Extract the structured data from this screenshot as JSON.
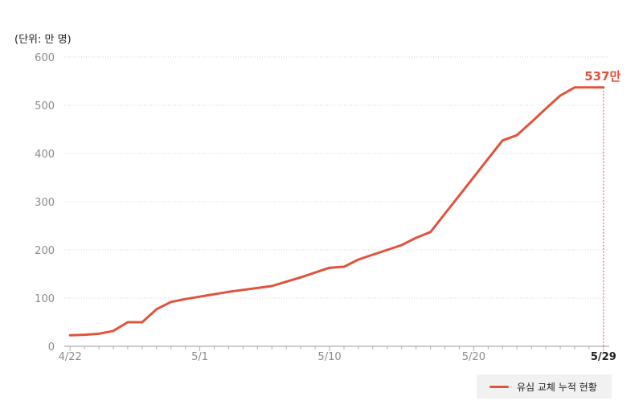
{
  "unit_label": "(단위: 만 명)",
  "chart_data": {
    "type": "line",
    "title": "",
    "xlabel": "",
    "ylabel": "(단위: 만 명)",
    "ylim": [
      0,
      600
    ],
    "y_ticks": [
      0,
      100,
      200,
      300,
      400,
      500,
      600
    ],
    "x_range": [
      -0.4,
      37.4
    ],
    "x_ticks": [
      {
        "label": "4/22",
        "day": 0
      },
      {
        "label": "5/1",
        "day": 9
      },
      {
        "label": "5/10",
        "day": 18
      },
      {
        "label": "5/20",
        "day": 28
      },
      {
        "label": "5/29",
        "day": 37
      }
    ],
    "grid": "horizontal-dotted",
    "legend_position": "bottom-right",
    "series": [
      {
        "name": "유심 교체 누적 현황",
        "color": "#e0533d",
        "x": [
          0,
          1,
          2,
          3,
          4,
          5,
          6,
          7,
          8,
          9,
          10,
          11,
          12,
          13,
          14,
          15,
          16,
          17,
          18,
          19,
          20,
          21,
          22,
          23,
          24,
          25,
          26,
          27,
          28,
          29,
          30,
          31,
          32,
          33,
          34,
          35,
          36,
          37
        ],
        "values": [
          23,
          24,
          26,
          32,
          50,
          50,
          77,
          92,
          98,
          103,
          108,
          113,
          117,
          121,
          125,
          134,
          143,
          153,
          163,
          165,
          180,
          190,
          200,
          210,
          225,
          237,
          275,
          313,
          351,
          389,
          427,
          438,
          465,
          493,
          520,
          537,
          537,
          537
        ]
      }
    ],
    "end_annotation": {
      "day": 37,
      "value": 537,
      "label": "537만",
      "color": "#e0533d"
    }
  }
}
